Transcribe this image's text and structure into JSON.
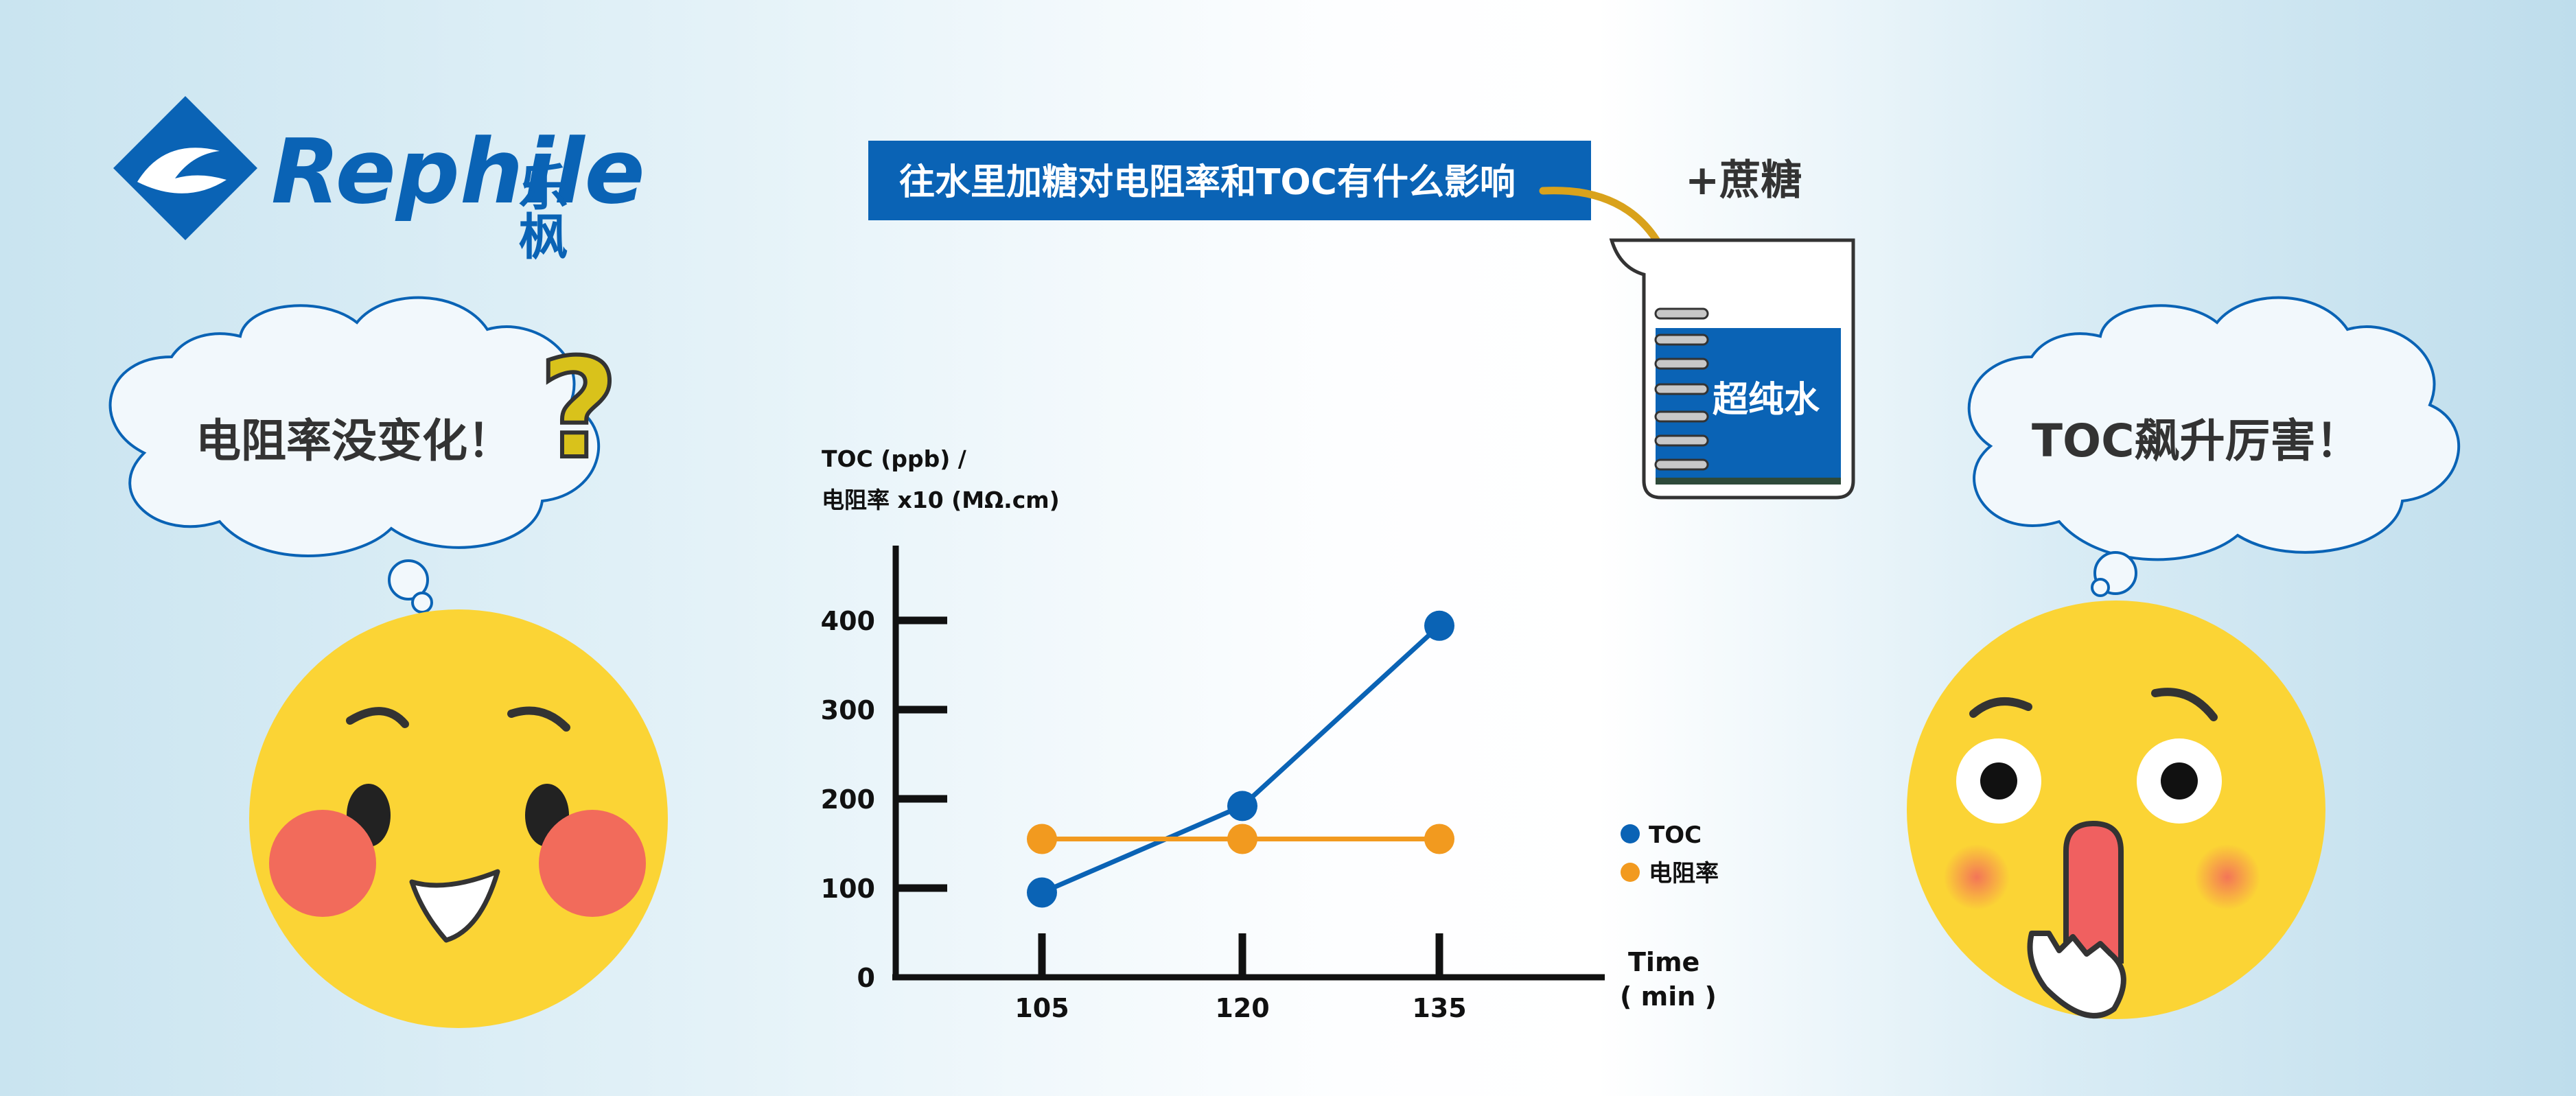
{
  "brand": {
    "name": "Rephile",
    "name_cn": "乐枫"
  },
  "banner": {
    "text": "往水里加糖对电阻率和TOC有什么影响",
    "color": "#0A63B5"
  },
  "sucrose_label": "+蔗糖",
  "beaker_label": "超纯水",
  "left_thought": "电阻率没变化！",
  "left_mark": "?",
  "right_thought": "TOC飙升厉害！",
  "colors": {
    "toc": "#0A63B5",
    "resistivity": "#F29A1F",
    "face": "#FBD435",
    "cheek": "#F26B5B"
  },
  "chart_data": {
    "type": "line",
    "ylabel": "TOC (ppb) /",
    "ylabel_line2": "电阻率 x10 (MΩ.cm)",
    "xlabel": "Time",
    "xlabel_line2": "( min )",
    "x": [
      105,
      120,
      135
    ],
    "x_ticks": [
      "105",
      "120",
      "135"
    ],
    "y_ticks": [
      "0",
      "100",
      "200",
      "300",
      "400"
    ],
    "ylim": [
      0,
      400
    ],
    "grid": false,
    "legend_position": "right",
    "series": [
      {
        "name": "TOC",
        "values": [
          95,
          192,
          394
        ]
      },
      {
        "name": "电阻率",
        "values": [
          155,
          155,
          155
        ]
      }
    ]
  }
}
